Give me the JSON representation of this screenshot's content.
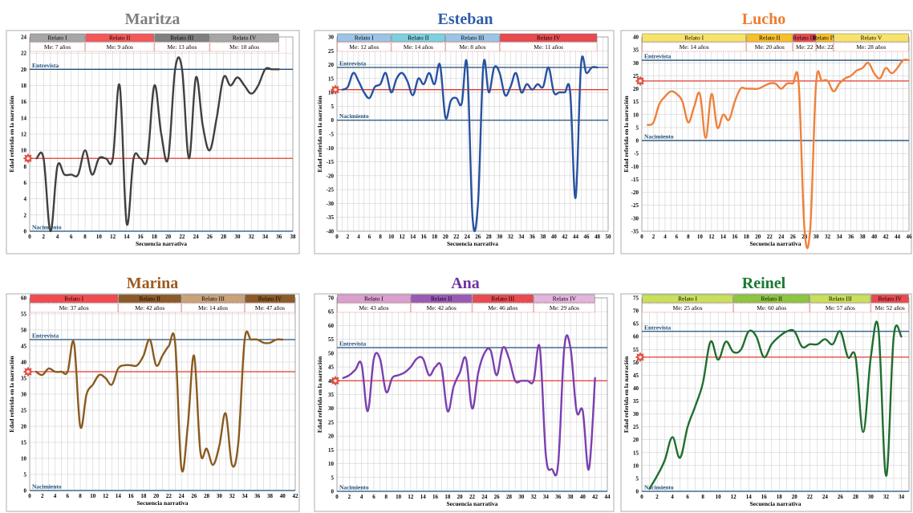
{
  "colors": {
    "entrevista_line": "#1f4e79",
    "nacimiento_line": "#1f4e79",
    "reference_line": "#e03c31",
    "grid": "#c8c8c8",
    "marker": "#e8504a"
  },
  "chart_data": [
    {
      "type": "line",
      "title": "Maritza",
      "title_color": "#7f7f7f",
      "line_color": "#404040",
      "xlabel": "Secuencia narrativa",
      "ylabel": "Edad referida en la narración",
      "xlim": [
        0,
        38
      ],
      "xstep": 2,
      "ylim": [
        0,
        24
      ],
      "ystep": 2,
      "entrevista": 20,
      "nacimiento": 0,
      "reference": 9,
      "entrevista_label": "Entrevista",
      "nacimiento_label": "Nacimiento",
      "relatos": [
        {
          "label": "Relato I",
          "from": 0,
          "to": 8,
          "color": "#a6a6a6",
          "me": "Me: 7 años"
        },
        {
          "label": "Relato II",
          "from": 8,
          "to": 18,
          "color": "#f2585a",
          "me": "Me: 9 años"
        },
        {
          "label": "Relato III",
          "from": 18,
          "to": 26,
          "color": "#7f7f7f",
          "me": "Me: 13 años"
        },
        {
          "label": "Relato IV",
          "from": 26,
          "to": 36,
          "color": "#a6a6a6",
          "me": "Me: 18 años"
        }
      ],
      "x": [
        1,
        2,
        3,
        4,
        5,
        6,
        7,
        8,
        9,
        10,
        11,
        12,
        13,
        14,
        15,
        16,
        17,
        18,
        19,
        20,
        21,
        22,
        23,
        24,
        25,
        26,
        27,
        28,
        29,
        30,
        31,
        32,
        33,
        34,
        35,
        36
      ],
      "y": [
        9,
        9,
        0,
        8,
        7,
        7,
        7,
        10,
        7,
        9,
        9,
        9,
        18,
        1,
        9,
        9,
        9,
        18,
        12,
        9,
        20,
        20,
        9,
        19,
        13,
        10,
        14,
        19,
        18,
        19,
        18,
        17,
        18,
        20,
        20,
        20
      ]
    },
    {
      "type": "line",
      "title": "Esteban",
      "title_color": "#2e5ca8",
      "line_color": "#2852a0",
      "xlabel": "Secuencia narrativa",
      "ylabel": "Edad referida en la narración",
      "xlim": [
        0,
        50
      ],
      "xstep": 2,
      "ylim": [
        -40,
        30
      ],
      "ystep": 5,
      "entrevista": 19,
      "nacimiento": 0,
      "reference": 11,
      "entrevista_label": "Entrevista",
      "nacimiento_label": "Nacimiento",
      "relatos": [
        {
          "label": "Relato I",
          "from": 0,
          "to": 10,
          "color": "#9dc3e6",
          "me": "Me: 12 años"
        },
        {
          "label": "Relato II",
          "from": 10,
          "to": 20,
          "color": "#7fd0df",
          "me": "Me: 14 años"
        },
        {
          "label": "Relato III",
          "from": 20,
          "to": 30,
          "color": "#9dc3e6",
          "me": "Me: 8 años"
        },
        {
          "label": "Relato IV",
          "from": 30,
          "to": 48,
          "color": "#e84a50",
          "me": "Me: 11 años"
        }
      ],
      "x": [
        1,
        2,
        3,
        4,
        5,
        6,
        7,
        8,
        9,
        10,
        11,
        12,
        13,
        14,
        15,
        16,
        17,
        18,
        19,
        20,
        21,
        22,
        23,
        24,
        25,
        26,
        27,
        28,
        29,
        30,
        31,
        32,
        33,
        34,
        35,
        36,
        37,
        38,
        39,
        40,
        41,
        42,
        43,
        44,
        45,
        46,
        47,
        48
      ],
      "y": [
        11,
        12,
        17,
        14,
        10,
        8,
        12,
        13,
        17,
        10,
        15,
        17,
        14,
        9,
        15,
        13,
        17,
        13,
        20,
        1,
        7,
        8,
        6,
        20,
        -35,
        -30,
        20,
        10,
        19,
        17,
        9,
        12,
        17,
        10,
        13,
        11,
        13,
        12,
        19,
        10,
        10,
        10,
        10,
        -28,
        20,
        17,
        19,
        19
      ]
    },
    {
      "type": "line",
      "title": "Lucho",
      "title_color": "#ed7d31",
      "line_color": "#f0803a",
      "xlabel": "Secuencia narrativa",
      "ylabel": "Edad referida en la narración",
      "xlim": [
        0,
        46
      ],
      "xstep": 2,
      "ylim": [
        -35,
        40
      ],
      "ystep": 5,
      "entrevista": 31,
      "nacimiento": 0,
      "reference": 23,
      "entrevista_label": "Entrevista",
      "nacimiento_label": "Nacimiento",
      "relatos": [
        {
          "label": "Relato I",
          "from": 0,
          "to": 18,
          "color": "#f7e36a",
          "me": "Me: 14 años"
        },
        {
          "label": "Relato II",
          "from": 18,
          "to": 26,
          "color": "#f6c029",
          "me": "Me: 20 años"
        },
        {
          "label": "Relato III",
          "from": 26,
          "to": 30,
          "color": "#e84a50",
          "me": "Me: 22"
        },
        {
          "label": "Relato IV",
          "from": 30,
          "to": 33,
          "color": "#f6c029",
          "me": "Me: 22"
        },
        {
          "label": "Relato V",
          "from": 33,
          "to": 46,
          "color": "#f7e36a",
          "me": "Me: 28 años"
        }
      ],
      "x": [
        1,
        2,
        3,
        4,
        5,
        6,
        7,
        8,
        9,
        10,
        11,
        12,
        13,
        14,
        15,
        16,
        17,
        18,
        19,
        20,
        21,
        22,
        23,
        24,
        25,
        26,
        27,
        28,
        29,
        30,
        31,
        32,
        33,
        34,
        35,
        36,
        37,
        38,
        39,
        40,
        41,
        42,
        43,
        44,
        45,
        46
      ],
      "y": [
        6,
        7,
        14,
        17,
        19,
        18,
        15,
        7,
        13,
        18,
        1,
        18,
        5,
        10,
        8,
        15,
        20,
        20,
        20,
        20,
        21,
        22,
        22,
        20,
        22,
        22,
        22,
        -34,
        -34,
        22,
        23,
        23,
        19,
        22,
        24,
        25,
        27,
        28,
        30,
        26,
        24,
        28,
        26,
        28,
        31,
        31
      ]
    },
    {
      "type": "line",
      "title": "Marina",
      "title_color": "#9c5a1e",
      "line_color": "#8a5a1f",
      "xlabel": "Secuencia narrativa",
      "ylabel": "Edad referida en la narración",
      "xlim": [
        0,
        42
      ],
      "xstep": 2,
      "ylim": [
        0,
        60
      ],
      "ystep": 5,
      "entrevista": 47,
      "nacimiento": 0,
      "reference": 37,
      "entrevista_label": "Entrevista",
      "nacimiento_label": "Nacimiento",
      "relatos": [
        {
          "label": "Relato I",
          "from": 0,
          "to": 14,
          "color": "#f24b4f",
          "me": "Me: 37 años"
        },
        {
          "label": "Relato II",
          "from": 14,
          "to": 24,
          "color": "#8c5a28",
          "me": "Me: 42 años"
        },
        {
          "label": "Relato III",
          "from": 24,
          "to": 34,
          "color": "#c9a27a",
          "me": "Me: 14 años"
        },
        {
          "label": "Relato IV",
          "from": 34,
          "to": 42,
          "color": "#8c5a28",
          "me": "Me: 47 años"
        }
      ],
      "x": [
        1,
        2,
        3,
        4,
        5,
        6,
        7,
        8,
        9,
        10,
        11,
        12,
        13,
        14,
        15,
        16,
        17,
        18,
        19,
        20,
        21,
        22,
        23,
        24,
        25,
        26,
        27,
        28,
        29,
        30,
        31,
        32,
        33,
        34,
        35,
        36,
        37,
        38,
        39,
        40
      ],
      "y": [
        37,
        36,
        38,
        37,
        37,
        37,
        46,
        20,
        30,
        33,
        36,
        35,
        33,
        38,
        39,
        39,
        39,
        42,
        47,
        39,
        42,
        45,
        46,
        7,
        20,
        42,
        12,
        13,
        8,
        14,
        24,
        8,
        15,
        47,
        47,
        47,
        46,
        46,
        47,
        47
      ]
    },
    {
      "type": "line",
      "title": "Ana",
      "title_color": "#7030a0",
      "line_color": "#7b3fb0",
      "xlabel": "Secuencia narrativa",
      "ylabel": "Edad referida en la narración",
      "xlim": [
        0,
        44
      ],
      "xstep": 2,
      "ylim": [
        0,
        70
      ],
      "ystep": 5,
      "entrevista": 52,
      "nacimiento": 0,
      "reference": 40,
      "entrevista_label": "Entrevista",
      "nacimiento_label": "Nacimiento",
      "relatos": [
        {
          "label": "Relato I",
          "from": 0,
          "to": 12,
          "color": "#dba0d0",
          "me": "Me: 43 años"
        },
        {
          "label": "Relato II",
          "from": 12,
          "to": 22,
          "color": "#9b59b6",
          "me": "Me: 42 años"
        },
        {
          "label": "Relato III",
          "from": 22,
          "to": 32,
          "color": "#e84a50",
          "me": "Me: 46 años"
        },
        {
          "label": "Relato IV",
          "from": 32,
          "to": 42,
          "color": "#e3b4dd",
          "me": "Me: 29 años"
        }
      ],
      "x": [
        1,
        2,
        3,
        4,
        5,
        6,
        7,
        8,
        9,
        10,
        11,
        12,
        13,
        14,
        15,
        16,
        17,
        18,
        19,
        20,
        21,
        22,
        23,
        24,
        25,
        26,
        27,
        28,
        29,
        30,
        31,
        32,
        33,
        34,
        35,
        36,
        37,
        38,
        39,
        40,
        41,
        42
      ],
      "y": [
        41,
        42,
        44,
        46,
        29,
        48,
        48,
        36,
        41,
        42,
        43,
        45,
        48,
        48,
        42,
        45,
        45,
        29,
        38,
        43,
        48,
        30,
        43,
        50,
        51,
        42,
        52,
        48,
        40,
        40,
        40,
        40,
        52,
        13,
        8,
        10,
        52,
        52,
        29,
        29,
        8,
        41
      ]
    },
    {
      "type": "line",
      "title": "Reinel",
      "title_color": "#1a7a33",
      "line_color": "#1f6e2e",
      "xlabel": "Secuencia narrativa",
      "ylabel": "Edad referida en la narración",
      "xlim": [
        0,
        35
      ],
      "xstep": 2,
      "ylim": [
        0,
        75
      ],
      "ystep": 5,
      "entrevista": 62,
      "nacimiento": 0,
      "reference": 52,
      "entrevista_label": "Entrevista",
      "nacimiento_label": "Nacimiento",
      "relatos": [
        {
          "label": "Relato I",
          "from": 0,
          "to": 12,
          "color": "#c8e05a",
          "me": "Me: 25 años"
        },
        {
          "label": "Relato II",
          "from": 12,
          "to": 22,
          "color": "#8dc63f",
          "me": "Me: 60 años"
        },
        {
          "label": "Relato III",
          "from": 22,
          "to": 30,
          "color": "#c8e05a",
          "me": "Me: 57 años"
        },
        {
          "label": "Relato IV",
          "from": 30,
          "to": 35,
          "color": "#e84a50",
          "me": "Me: 52 años"
        }
      ],
      "x": [
        1,
        2,
        3,
        4,
        5,
        6,
        7,
        8,
        9,
        10,
        11,
        12,
        13,
        14,
        15,
        16,
        17,
        18,
        19,
        20,
        21,
        22,
        23,
        24,
        25,
        26,
        27,
        28,
        29,
        30,
        31,
        32,
        33,
        34
      ],
      "y": [
        1,
        6,
        12,
        21,
        13,
        25,
        33,
        42,
        58,
        51,
        58,
        54,
        55,
        62,
        60,
        52,
        57,
        60,
        62,
        62,
        56,
        57,
        57,
        59,
        57,
        62,
        52,
        52,
        23,
        52,
        63,
        6,
        60,
        60
      ]
    }
  ]
}
